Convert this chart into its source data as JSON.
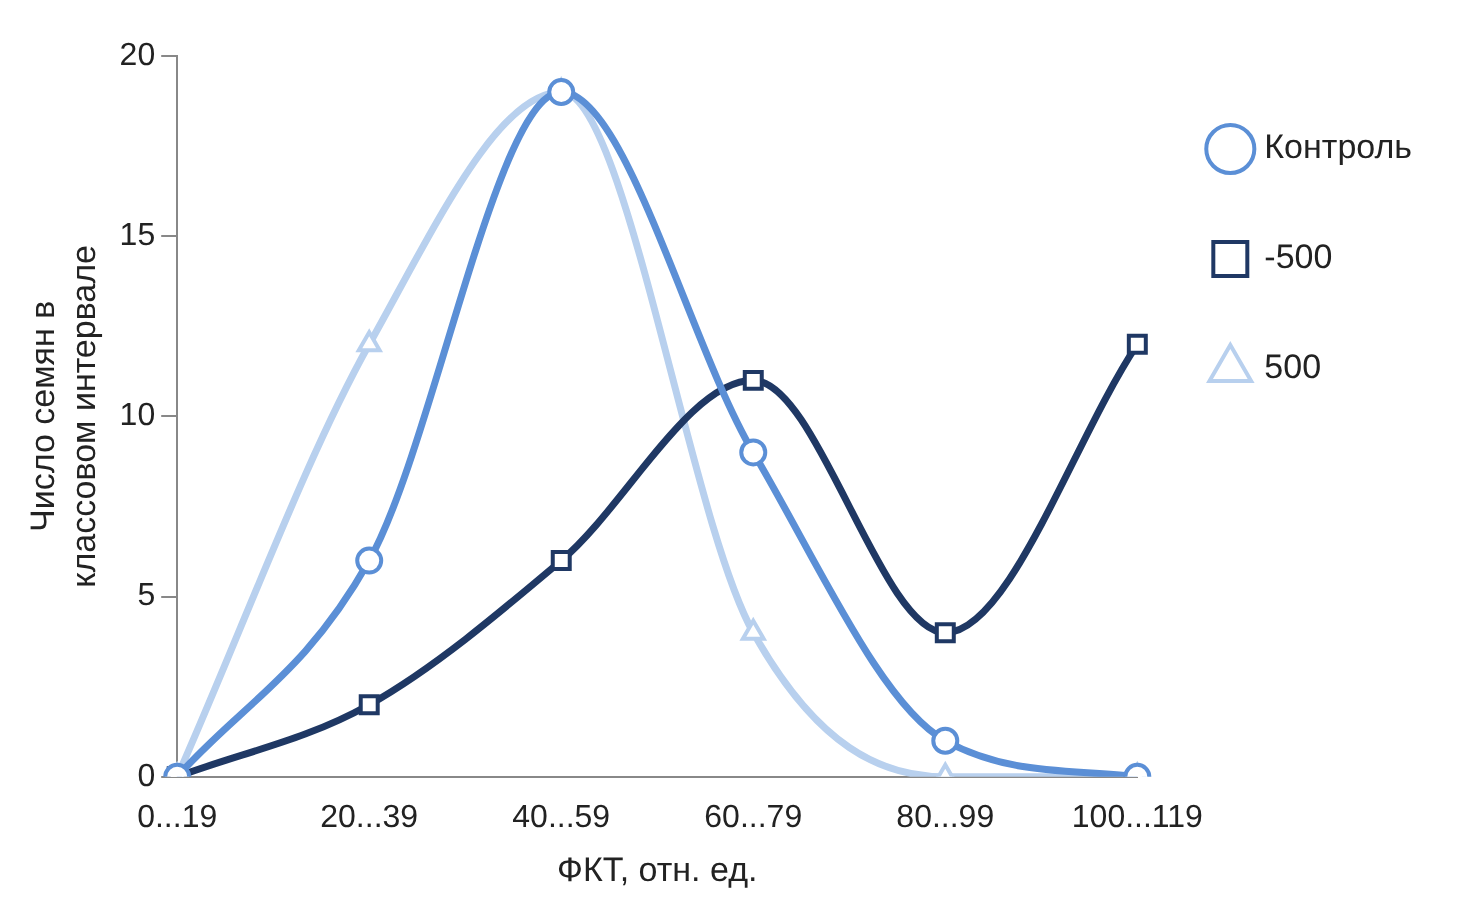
{
  "chart_data": {
    "type": "line",
    "xlabel": "ФКТ, отн. ед.",
    "ylabel": "Число семян в классовом интервале",
    "categories": [
      "0...19",
      "20...39",
      "40...59",
      "60...79",
      "80...99",
      "100...119"
    ],
    "series": [
      {
        "name": "Контроль",
        "color": "#5b8fd6",
        "marker": "circle",
        "values": [
          0,
          6,
          19,
          9,
          1,
          0
        ]
      },
      {
        "name": "-500",
        "color": "#1f3864",
        "marker": "square",
        "values": [
          0,
          2,
          6,
          11,
          4,
          12
        ]
      },
      {
        "name": "500",
        "color": "#b8d0ee",
        "marker": "triangle",
        "values": [
          0,
          12,
          19,
          4,
          0,
          0
        ]
      }
    ],
    "ylim": [
      0,
      20
    ],
    "yticks": [
      0,
      5,
      10,
      15,
      20
    ],
    "grid": false,
    "legend": "right"
  }
}
